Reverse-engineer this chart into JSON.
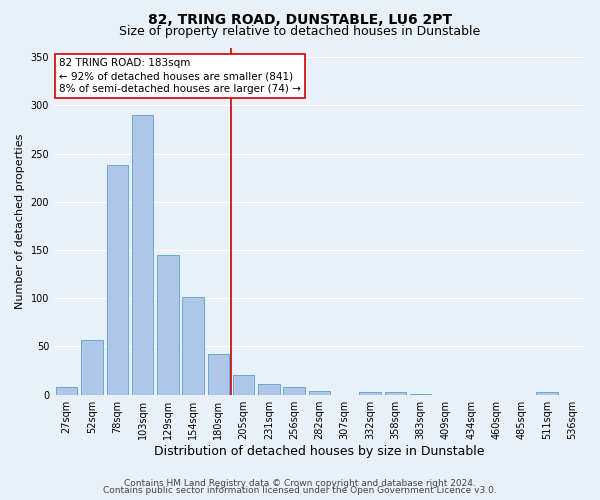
{
  "title": "82, TRING ROAD, DUNSTABLE, LU6 2PT",
  "subtitle": "Size of property relative to detached houses in Dunstable",
  "xlabel": "Distribution of detached houses by size in Dunstable",
  "ylabel": "Number of detached properties",
  "categories": [
    "27sqm",
    "52sqm",
    "78sqm",
    "103sqm",
    "129sqm",
    "154sqm",
    "180sqm",
    "205sqm",
    "231sqm",
    "256sqm",
    "282sqm",
    "307sqm",
    "332sqm",
    "358sqm",
    "383sqm",
    "409sqm",
    "434sqm",
    "460sqm",
    "485sqm",
    "511sqm",
    "536sqm"
  ],
  "values": [
    8,
    57,
    238,
    290,
    145,
    101,
    42,
    20,
    11,
    8,
    4,
    0,
    3,
    3,
    1,
    0,
    0,
    0,
    0,
    3,
    0
  ],
  "bar_color": "#aec6e8",
  "bar_edge_color": "#5a9fd4",
  "vline_index": 6.5,
  "vline_color": "#cc0000",
  "annotation_text": "82 TRING ROAD: 183sqm\n← 92% of detached houses are smaller (841)\n8% of semi-detached houses are larger (74) →",
  "annotation_box_facecolor": "#ffffff",
  "annotation_box_edgecolor": "#cc0000",
  "ylim": [
    0,
    360
  ],
  "yticks": [
    0,
    50,
    100,
    150,
    200,
    250,
    300,
    350
  ],
  "bg_color": "#e8f0f8",
  "grid_color": "#ffffff",
  "footer_line1": "Contains HM Land Registry data © Crown copyright and database right 2024.",
  "footer_line2": "Contains public sector information licensed under the Open Government Licence v3.0.",
  "title_fontsize": 10,
  "subtitle_fontsize": 9,
  "xlabel_fontsize": 9,
  "ylabel_fontsize": 8,
  "tick_fontsize": 7,
  "annotation_fontsize": 7.5,
  "footer_fontsize": 6.5
}
